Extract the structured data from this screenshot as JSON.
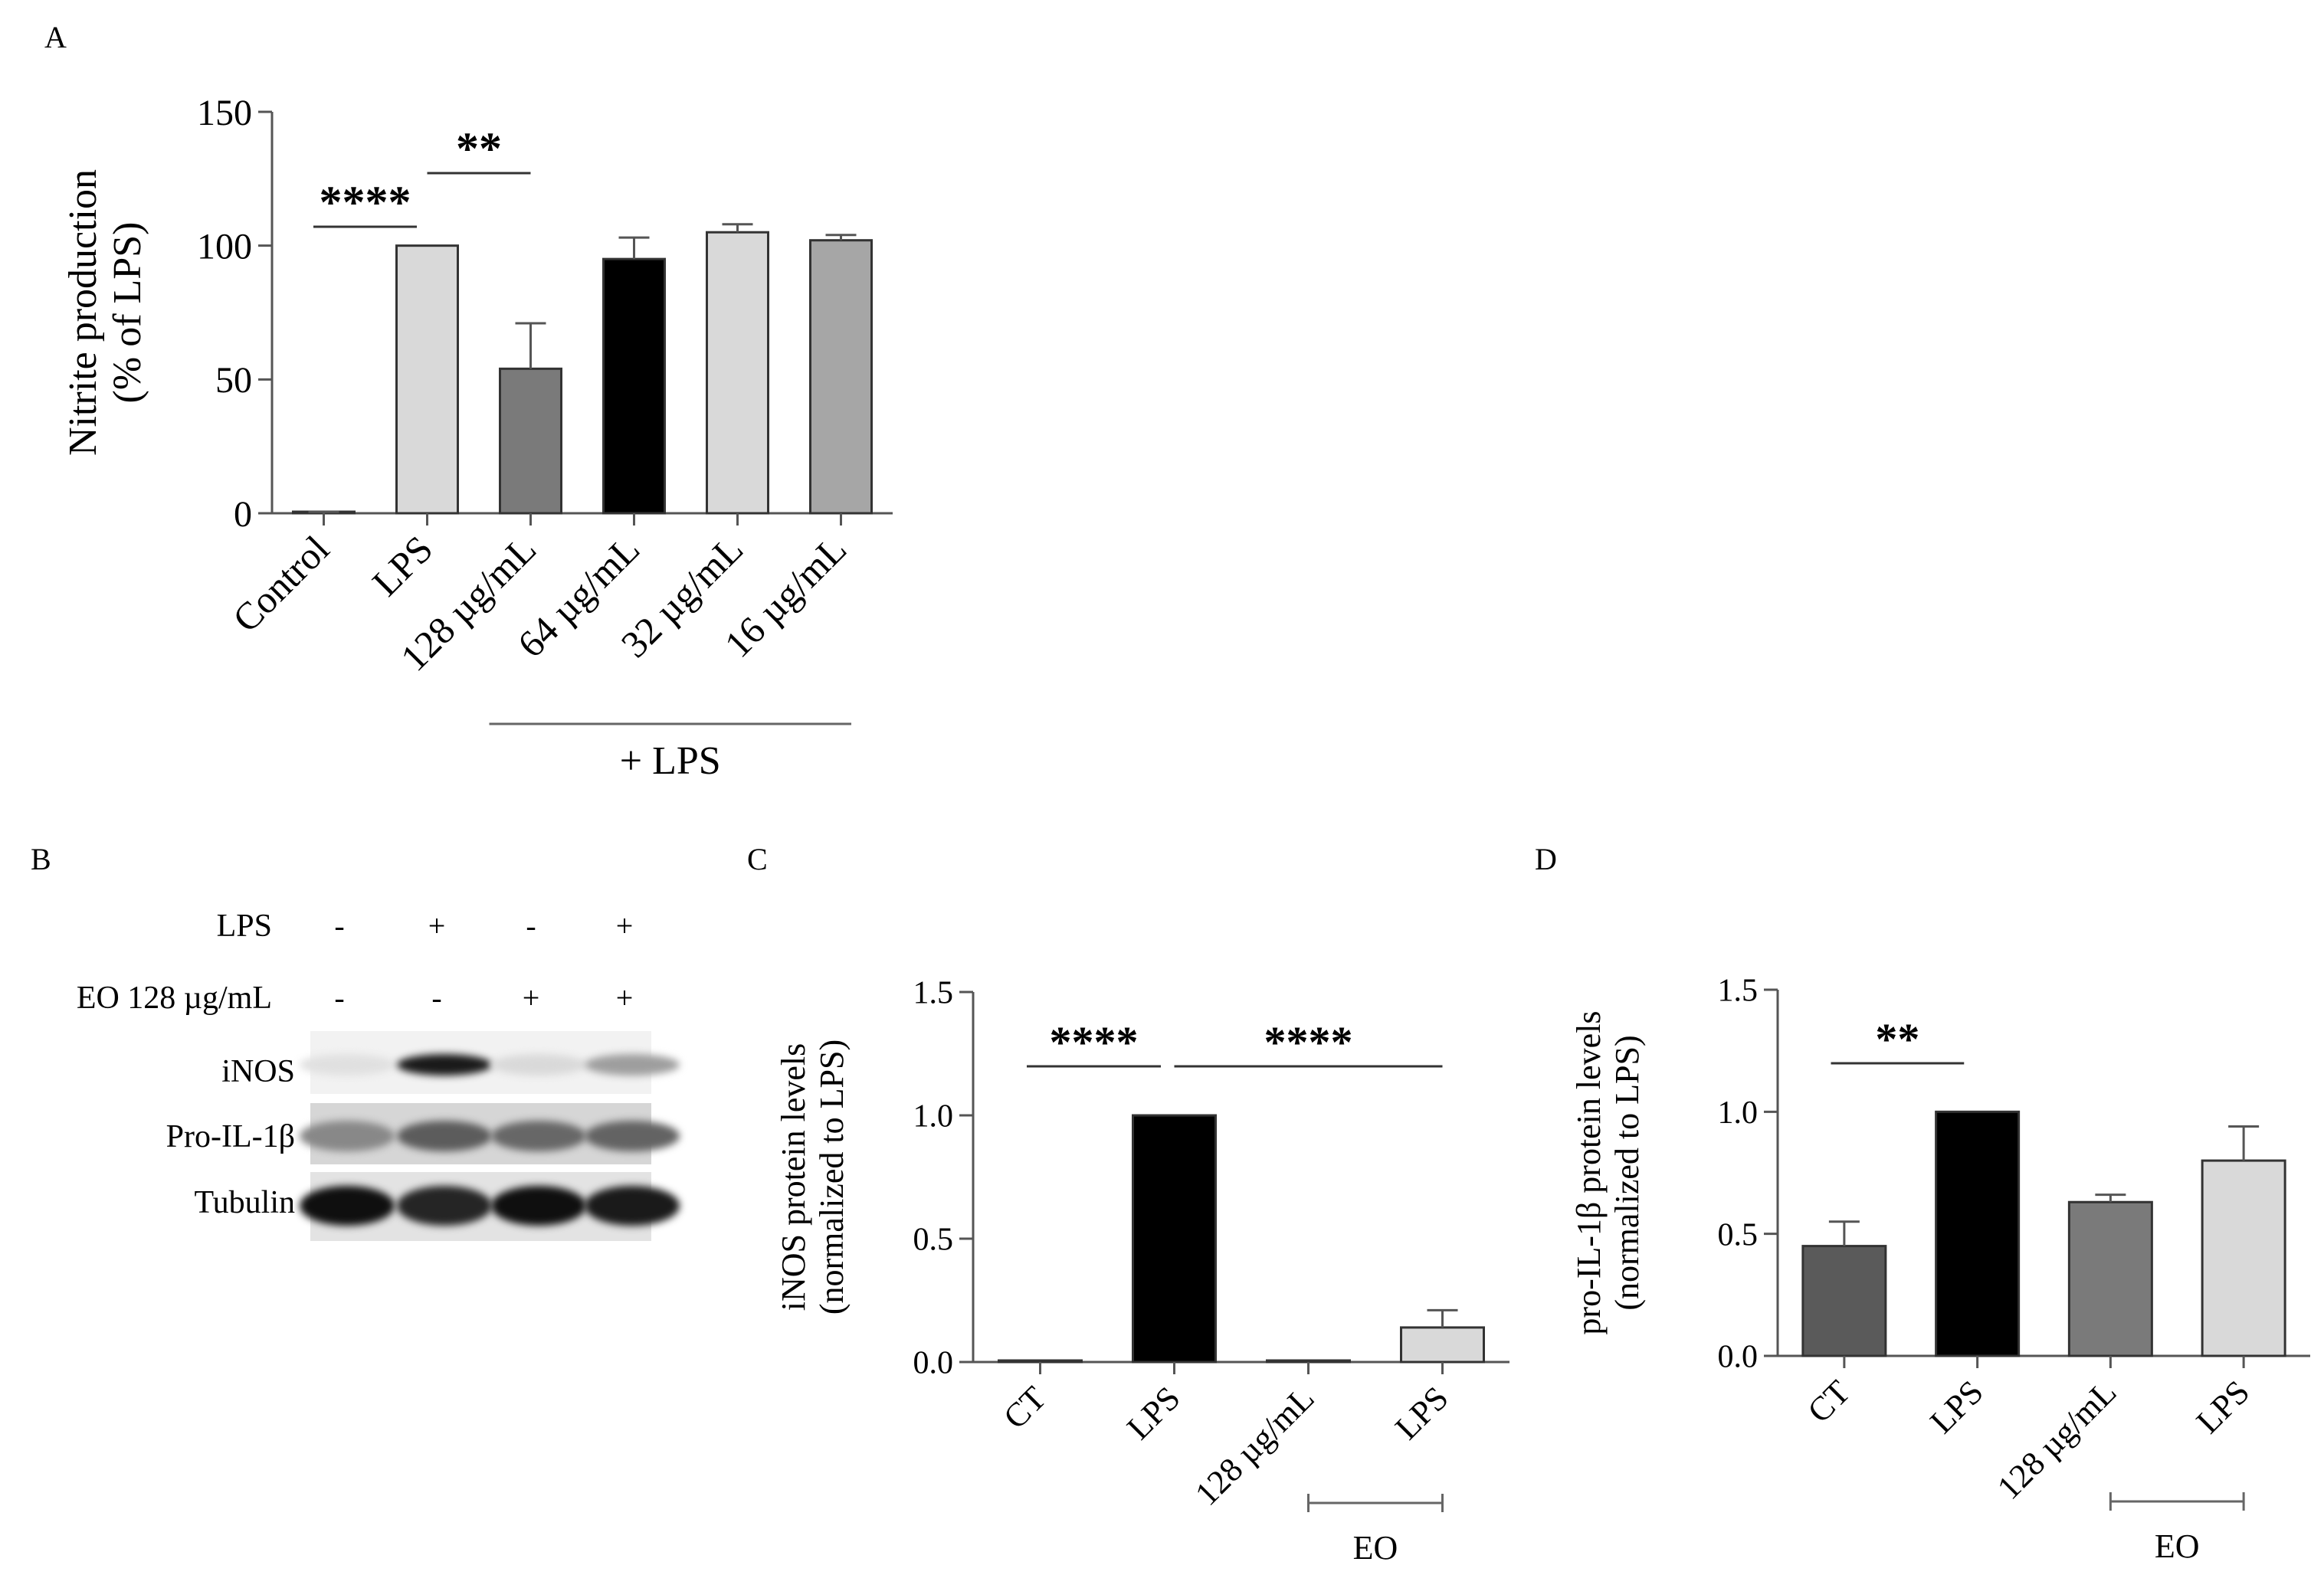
{
  "panels": {
    "A": {
      "letter": "A"
    },
    "B": {
      "letter": "B",
      "conditions": [
        {
          "label": "LPS",
          "values": [
            "-",
            "+",
            "-",
            "+"
          ]
        },
        {
          "label": "EO 128 µg/mL",
          "values": [
            "-",
            "-",
            "+",
            "+"
          ]
        }
      ],
      "rows": [
        {
          "label": "iNOS",
          "intensities": [
            0.05,
            0.95,
            0.08,
            0.35
          ]
        },
        {
          "label": "Pro-IL-1β",
          "intensities": [
            0.45,
            0.65,
            0.6,
            0.62
          ]
        },
        {
          "label": "Tubulin",
          "intensities": [
            1.0,
            0.9,
            1.0,
            0.95
          ]
        }
      ]
    },
    "C": {
      "letter": "C"
    },
    "D": {
      "letter": "D"
    }
  },
  "chart_data": [
    {
      "panel": "A",
      "type": "bar",
      "title": "",
      "xlabel": "",
      "ylabel": [
        "Nitrite production",
        "(% of  LPS)"
      ],
      "ylim": [
        0,
        150
      ],
      "yticks": [
        0,
        50,
        100,
        150
      ],
      "categories": [
        "Control",
        "LPS",
        "128 µg/mL",
        "64 µg/mL",
        "32 µg/mL",
        "16 µg/mL"
      ],
      "values": [
        0,
        100,
        54,
        95,
        105,
        102
      ],
      "errors": [
        0.5,
        0,
        17,
        8,
        3,
        2
      ],
      "colors": [
        "#ffffff",
        "#d9d9d9",
        "#7a7a7a",
        "#000000",
        "#d9d9d9",
        "#a6a6a6"
      ],
      "group_label": {
        "text": "+ LPS",
        "from": 2,
        "to": 5,
        "caps": false
      },
      "significance": [
        {
          "from": 0,
          "to": 1,
          "text": "****"
        },
        {
          "from": 1,
          "to": 2,
          "text": "**"
        }
      ]
    },
    {
      "panel": "C",
      "type": "bar",
      "title": "",
      "xlabel": "",
      "ylabel": [
        "iNOS protein levels",
        "(normalized to LPS)"
      ],
      "ylim": [
        0,
        1.5
      ],
      "yticks": [
        "0.0",
        "0.5",
        "1.0",
        "1.5"
      ],
      "categories": [
        "CT",
        "LPS",
        "128 µg/mL",
        "LPS"
      ],
      "values": [
        0,
        1.0,
        0,
        0.14
      ],
      "errors": [
        0,
        0,
        0,
        0.07
      ],
      "colors": [
        "#ffffff",
        "#000000",
        "#ffffff",
        "#d9d9d9"
      ],
      "group_label": {
        "text": "EO",
        "from": 2,
        "to": 3,
        "caps": true
      },
      "significance": [
        {
          "from": 0,
          "to": 1,
          "text": "****"
        },
        {
          "from": 1,
          "to": 3,
          "text": "****"
        }
      ]
    },
    {
      "panel": "D",
      "type": "bar",
      "title": "",
      "xlabel": "",
      "ylabel": [
        "pro-IL-1β protein levels",
        "(normalized to LPS)"
      ],
      "ylim": [
        0,
        1.5
      ],
      "yticks": [
        "0.0",
        "0.5",
        "1.0",
        "1.5"
      ],
      "categories": [
        "CT",
        "LPS",
        "128 µg/mL",
        "LPS"
      ],
      "values": [
        0.45,
        1.0,
        0.63,
        0.8
      ],
      "errors": [
        0.1,
        0,
        0.03,
        0.14
      ],
      "colors": [
        "#5a5a5a",
        "#000000",
        "#7a7a7a",
        "#d9d9d9"
      ],
      "group_label": {
        "text": "EO",
        "from": 2,
        "to": 3,
        "caps": true
      },
      "significance": [
        {
          "from": 0,
          "to": 1,
          "text": "**"
        }
      ]
    }
  ]
}
